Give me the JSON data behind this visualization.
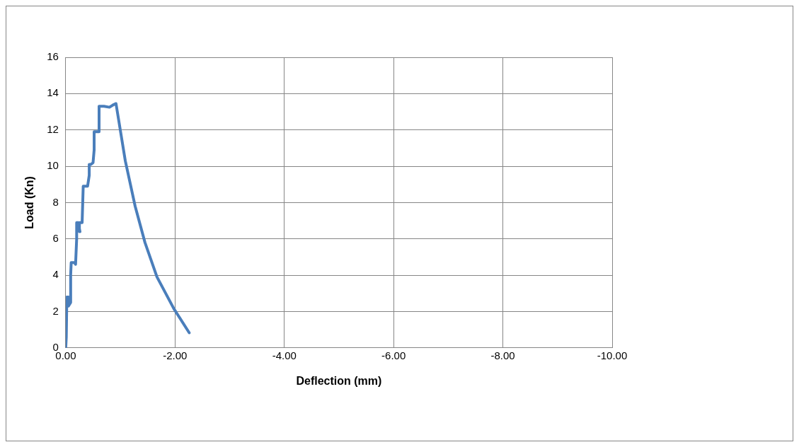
{
  "chart_data": {
    "type": "line",
    "xlabel": "Deflection (mm)",
    "ylabel": "Load (Kn)",
    "xlim": [
      0,
      -10
    ],
    "xticks": [
      {
        "value": 0,
        "label": "0.00"
      },
      {
        "value": -2,
        "label": "-2.00"
      },
      {
        "value": -4,
        "label": "-4.00"
      },
      {
        "value": -6,
        "label": "-6.00"
      },
      {
        "value": -8,
        "label": "-8.00"
      },
      {
        "value": -10,
        "label": "-10.00"
      }
    ],
    "ylim": [
      0,
      16
    ],
    "yticks": [
      0,
      2,
      4,
      6,
      8,
      10,
      12,
      14,
      16
    ],
    "grid": true,
    "legend": false,
    "marker": "none",
    "line_style": "solid",
    "series": [
      {
        "color": "#4a7ebb",
        "x": [
          0,
          -0.01,
          -0.02,
          -0.05,
          -0.05,
          -0.09,
          -0.09,
          -0.1,
          -0.16,
          -0.18,
          -0.2,
          -0.2,
          -0.23,
          -0.26,
          -0.25,
          -0.3,
          -0.32,
          -0.38,
          -0.4,
          -0.43,
          -0.43,
          -0.46,
          -0.5,
          -0.52,
          -0.52,
          -0.58,
          -0.61,
          -0.61,
          -0.7,
          -0.8,
          -0.88,
          -0.92,
          -1.09,
          -1.27,
          -1.45,
          -1.67,
          -1.98,
          -2.26
        ],
        "values": [
          0,
          0.6,
          2.8,
          2.8,
          2.3,
          2.5,
          4.0,
          4.7,
          4.7,
          4.6,
          6.0,
          6.9,
          6.9,
          6.4,
          6.9,
          6.9,
          8.9,
          8.9,
          8.9,
          9.5,
          10.1,
          10.1,
          10.2,
          10.9,
          11.9,
          11.9,
          11.9,
          13.3,
          13.3,
          13.25,
          13.4,
          13.45,
          10.3,
          7.8,
          5.8,
          3.9,
          2.15,
          0.83
        ]
      }
    ]
  }
}
